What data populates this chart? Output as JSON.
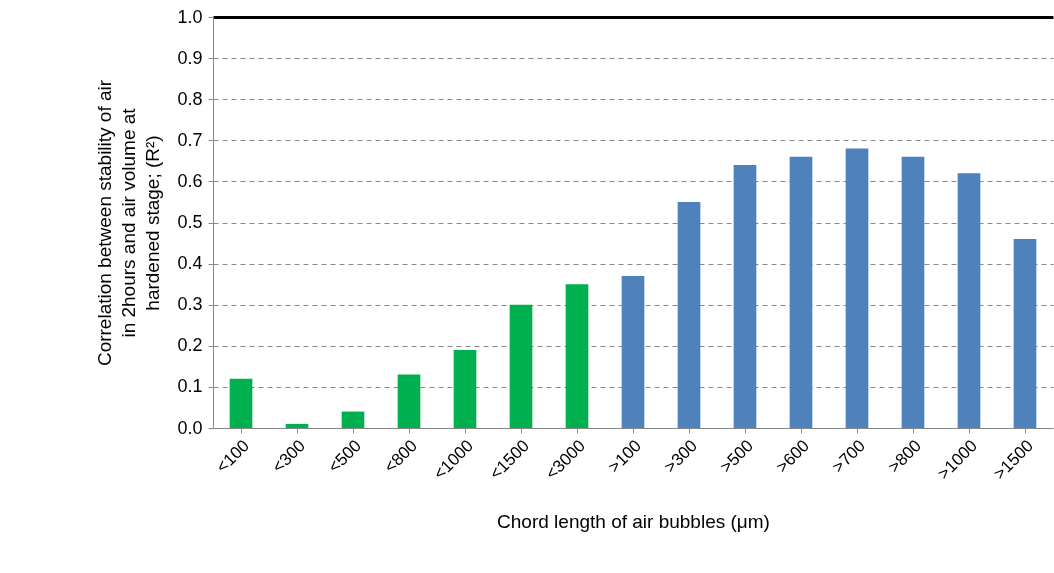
{
  "chart_data": {
    "type": "bar",
    "xlabel": "Chord length of air bubbles (μm)",
    "ylabel": "Correlation between stability of air\nin 2hours and air volume at\nhardened stage; (R²)",
    "categories": [
      "<100",
      "<300",
      "<500",
      "<800",
      "<1000",
      "<1500",
      "<3000",
      ">100",
      ">300",
      ">500",
      ">600",
      ">700",
      ">800",
      ">1000",
      ">1500"
    ],
    "values": [
      0.12,
      0.01,
      0.04,
      0.13,
      0.19,
      0.3,
      0.35,
      0.37,
      0.55,
      0.64,
      0.66,
      0.68,
      0.66,
      0.62,
      0.46
    ],
    "colors": [
      "#00b050",
      "#00b050",
      "#00b050",
      "#00b050",
      "#00b050",
      "#00b050",
      "#00b050",
      "#4f81bd",
      "#4f81bd",
      "#4f81bd",
      "#4f81bd",
      "#4f81bd",
      "#4f81bd",
      "#4f81bd",
      "#4f81bd"
    ],
    "ylim": [
      0,
      1
    ],
    "yticks": [
      {
        "value": 0,
        "label": "0.0"
      },
      0.1,
      0.2,
      0.3,
      0.4,
      0.5,
      0.6,
      0.7,
      0.8,
      0.9,
      {
        "value": 1,
        "label": "1.0"
      }
    ],
    "grid": "y",
    "line_style": "dashed"
  }
}
